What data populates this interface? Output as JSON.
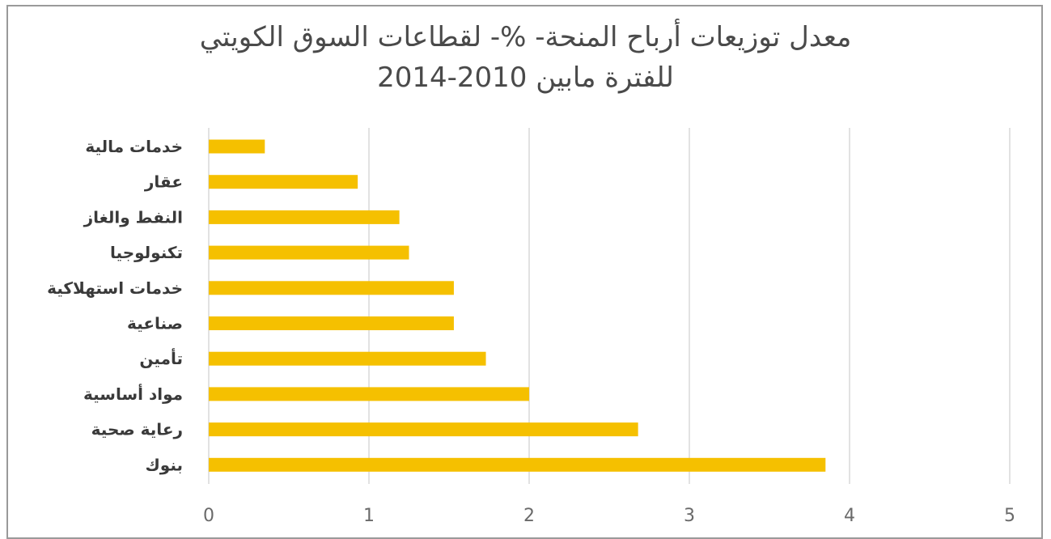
{
  "chart_data": {
    "type": "bar",
    "orientation": "horizontal",
    "title_lines": [
      "معدل توزيعات أرباح المنحة- %- لقطاعات السوق الكويتي",
      "للفترة مابين 2010-2014"
    ],
    "categories": [
      "خدمات مالية",
      "عقار",
      "النفط والغاز",
      "تكنولوجيا",
      "خدمات استهلاكية",
      "صناعية",
      "تأمين",
      "مواد أساسية",
      "رعاية صحية",
      "بنوك"
    ],
    "values": [
      0.35,
      0.93,
      1.19,
      1.25,
      1.53,
      1.53,
      1.73,
      2.0,
      2.68,
      3.85
    ],
    "xlim": [
      0,
      5
    ],
    "xticks": [
      "0",
      "1",
      "2",
      "3",
      "4",
      "5"
    ],
    "grid": "vertical",
    "legend": "none",
    "colors": {
      "bar": "#F5C000",
      "grid": "#d9d9d9",
      "border": "#9a9a9a"
    }
  }
}
